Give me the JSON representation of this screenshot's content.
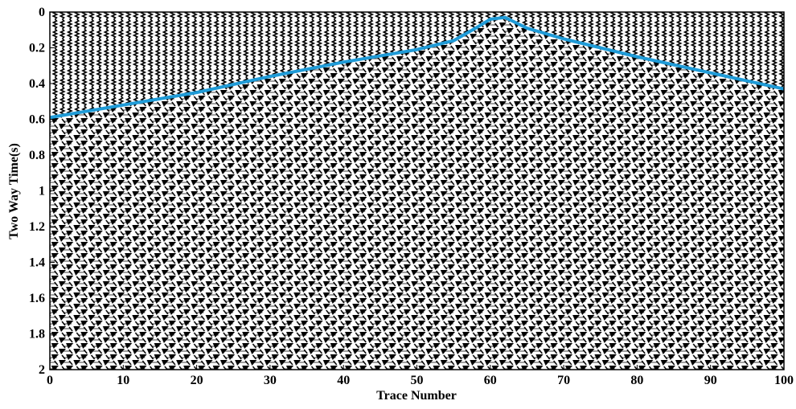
{
  "chart_data": {
    "type": "line",
    "x_label": "Trace Number",
    "y_label": "Two Way Time(s)",
    "x": [
      0,
      10,
      20,
      30,
      40,
      50,
      55,
      58,
      60,
      62,
      63,
      65,
      70,
      80,
      90,
      100
    ],
    "series": [
      {
        "color": "#1f9bd7",
        "values": [
          0.59,
          0.52,
          0.45,
          0.36,
          0.28,
          0.21,
          0.16,
          0.09,
          0.04,
          0.03,
          0.05,
          0.09,
          0.15,
          0.25,
          0.34,
          0.43
        ]
      }
    ],
    "xlim": [
      0,
      100
    ],
    "xticks": [
      0,
      10,
      20,
      30,
      40,
      50,
      60,
      70,
      80,
      90,
      100
    ],
    "ylim": [
      0,
      2
    ],
    "yticks": [
      0,
      0.2,
      0.4,
      0.6,
      0.8,
      1,
      1.2,
      1.4,
      1.6,
      1.8,
      2
    ],
    "y_inverted": true
  }
}
